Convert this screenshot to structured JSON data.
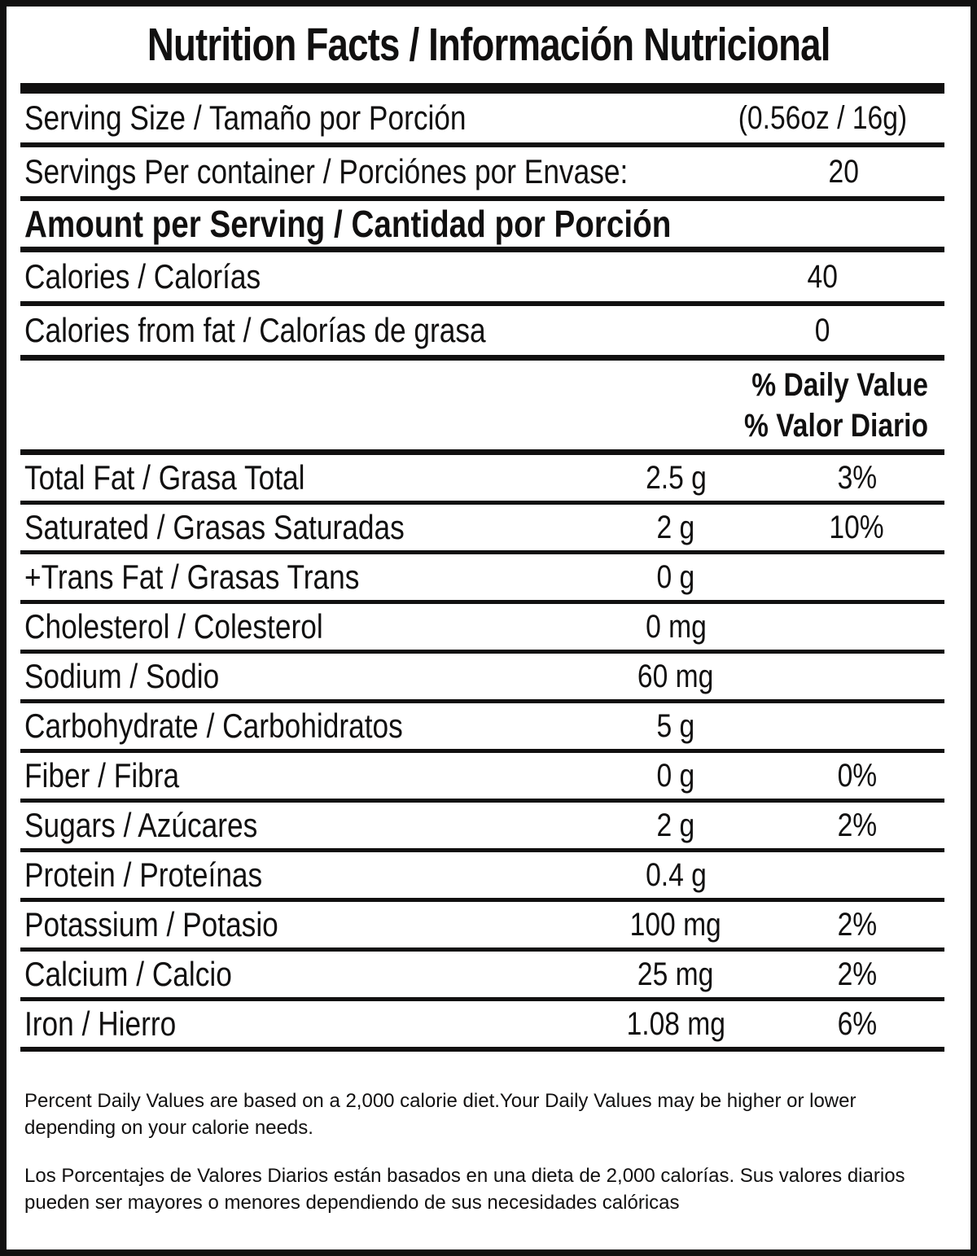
{
  "label": {
    "title": "Nutrition Facts / Información Nutricional",
    "serving_rows": [
      {
        "label": "Serving Size / Tamaño por Porción",
        "value": "(0.56oz / 16g)"
      },
      {
        "label": "Servings Per container / Porciónes por Envase:",
        "value": "20"
      }
    ],
    "amount_header": "Amount per Serving / Cantidad por Porción",
    "calorie_rows": [
      {
        "label": "Calories / Calorías",
        "value": "40"
      },
      {
        "label": "Calories from fat / Calorías de grasa",
        "value": "0"
      }
    ],
    "daily_value_header": {
      "line1": "% Daily Value",
      "line2": "% Valor Diario"
    },
    "nutrient_rows": [
      {
        "label": "Total Fat / Grasa Total",
        "amount": "2.5 g",
        "dv": "3%"
      },
      {
        "label": "Saturated / Grasas Saturadas",
        "amount": "2 g",
        "dv": "10%"
      },
      {
        "label": "+Trans Fat / Grasas Trans",
        "amount": "0 g",
        "dv": ""
      },
      {
        "label": "Cholesterol / Colesterol",
        "amount": "0 mg",
        "dv": ""
      },
      {
        "label": "Sodium / Sodio",
        "amount": "60 mg",
        "dv": ""
      },
      {
        "label": "Carbohydrate / Carbohidratos",
        "amount": "5 g",
        "dv": ""
      },
      {
        "label": "Fiber / Fibra",
        "amount": "0 g",
        "dv": "0%"
      },
      {
        "label": "Sugars / Azúcares",
        "amount": "2 g",
        "dv": "2%"
      },
      {
        "label": "Protein / Proteínas",
        "amount": "0.4 g",
        "dv": ""
      },
      {
        "label": "Potassium / Potasio",
        "amount": "100 mg",
        "dv": "2%"
      },
      {
        "label": "Calcium / Calcio",
        "amount": "25 mg",
        "dv": "2%"
      },
      {
        "label": "Iron / Hierro",
        "amount": "1.08 mg",
        "dv": "6%"
      }
    ],
    "footnotes": {
      "en": "Percent Daily Values are based on a 2,000 calorie diet.Your Daily Values may be higher or lower depending on your calorie needs.",
      "es": "Los Porcentajes de Valores Diarios están basados en una dieta de 2,000 calorías. Sus valores diarios pueden ser mayores o menores dependiendo de sus necesidades calóricas"
    },
    "colors": {
      "ink": "#111010",
      "background": "#ffffff"
    }
  }
}
